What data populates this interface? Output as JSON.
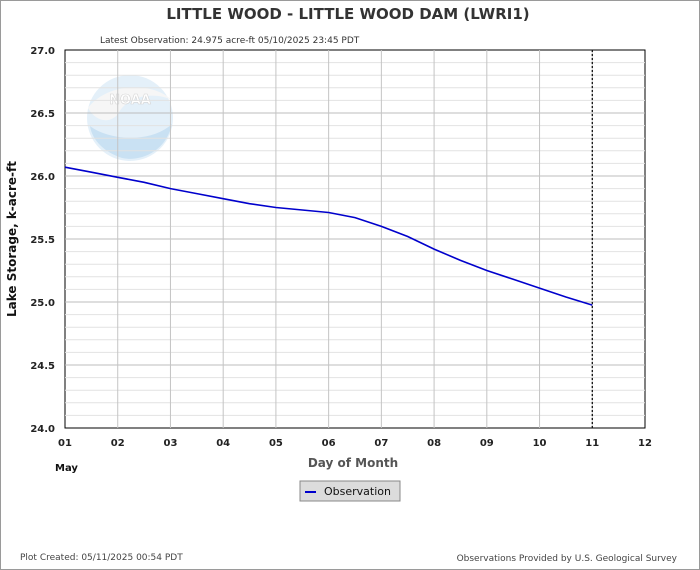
{
  "chart_data": {
    "type": "line",
    "title": "LITTLE WOOD - LITTLE WOOD DAM  (LWRI1)",
    "subtitle": "Latest Observation: 24.975 acre-ft 05/10/2025 23:45 PDT",
    "xlabel": "Day of Month",
    "ylabel": "Lake Storage, k-acre-ft",
    "month_label": "May",
    "xlim": [
      1,
      12
    ],
    "ylim": [
      24.0,
      27.0
    ],
    "x_ticks": [
      "01",
      "02",
      "03",
      "04",
      "05",
      "06",
      "07",
      "08",
      "09",
      "10",
      "11",
      "12"
    ],
    "y_ticks": [
      "24.0",
      "24.5",
      "25.0",
      "25.5",
      "26.0",
      "26.5",
      "27.0"
    ],
    "y_tick_values": [
      24.0,
      24.5,
      25.0,
      25.5,
      26.0,
      26.5,
      27.0
    ],
    "grid": true,
    "latest_observation_x": 11.0,
    "series": [
      {
        "name": "Observation",
        "color": "#0000cc",
        "x": [
          1.0,
          1.5,
          2.0,
          2.5,
          3.0,
          3.5,
          4.0,
          4.5,
          5.0,
          5.5,
          6.0,
          6.5,
          7.0,
          7.5,
          8.0,
          8.5,
          9.0,
          9.5,
          10.0,
          10.5,
          11.0
        ],
        "y": [
          26.07,
          26.03,
          25.99,
          25.95,
          25.9,
          25.86,
          25.82,
          25.78,
          25.75,
          25.73,
          25.71,
          25.67,
          25.6,
          25.52,
          25.42,
          25.33,
          25.25,
          25.18,
          25.11,
          25.04,
          24.975
        ]
      }
    ],
    "legend": "bottom-center"
  },
  "footer": {
    "plot_created": "Plot Created: 05/11/2025 00:54 PDT",
    "provided_by": "Observations Provided by U.S. Geological Survey"
  },
  "logo": {
    "text": "NOAA"
  }
}
